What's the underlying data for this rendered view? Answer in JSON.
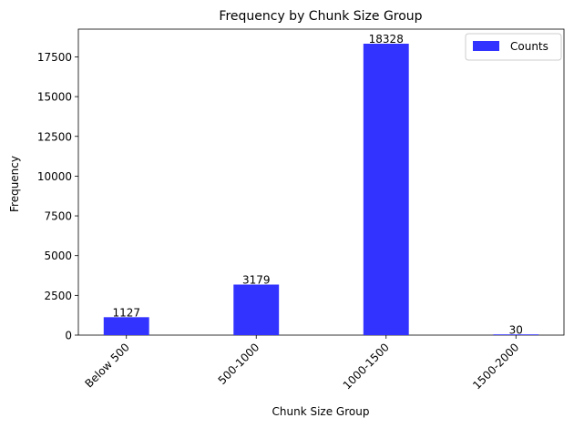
{
  "chart_data": {
    "type": "bar",
    "title": "Frequency by Chunk Size Group",
    "xlabel": "Chunk Size Group",
    "ylabel": "Frequency",
    "categories": [
      "Below 500",
      "500-1000",
      "1000-1500",
      "1500-2000"
    ],
    "series": [
      {
        "name": "Counts",
        "values": [
          1127,
          3179,
          18328,
          30
        ],
        "color": "#3333ff"
      }
    ],
    "data_labels": [
      "1127",
      "3179",
      "18328",
      "30"
    ],
    "yticks": [
      0,
      2500,
      5000,
      7500,
      10000,
      12500,
      15000,
      17500
    ],
    "ytick_labels": [
      "0",
      "2500",
      "5000",
      "7500",
      "10000",
      "12500",
      "15000",
      "17500"
    ],
    "ylim": [
      0,
      19244
    ],
    "grid": false,
    "legend_position": "top-right",
    "xtick_rotation": 45
  }
}
